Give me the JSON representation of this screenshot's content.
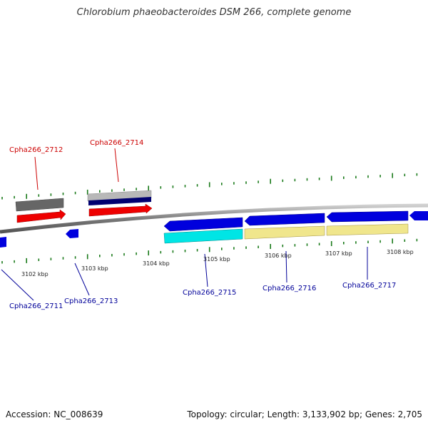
{
  "title": "Chlorobium phaeobacteroides DSM 266, complete genome",
  "footer": {
    "accession": "Accession: NC_008639",
    "summary": "Topology: circular; Length: 3,133,902 bp; Genes: 2,705"
  },
  "colors": {
    "label_forward": "#cc0000",
    "label_reverse": "#000099",
    "backbone": "#888888",
    "tick": "#1a7a1a",
    "cds_forward": "#ee0000",
    "cds_reverse": "#0000dd",
    "rna_gray": "#666666",
    "feature_cyan": "#00e5e5",
    "feature_khaki": "#f0e68c"
  },
  "scale_labels": [
    "3102 kbp",
    "3103 kbp",
    "3104 kbp",
    "3105 kbp",
    "3106 kbp",
    "3107 kbp",
    "3108 kbp"
  ],
  "gene_labels": {
    "top": [
      "Cpha266_2712",
      "Cpha266_2714"
    ],
    "bottom": [
      "Cpha266_2711",
      "Cpha266_2713",
      "Cpha266_2715",
      "Cpha266_2716",
      "Cpha266_2717"
    ]
  }
}
